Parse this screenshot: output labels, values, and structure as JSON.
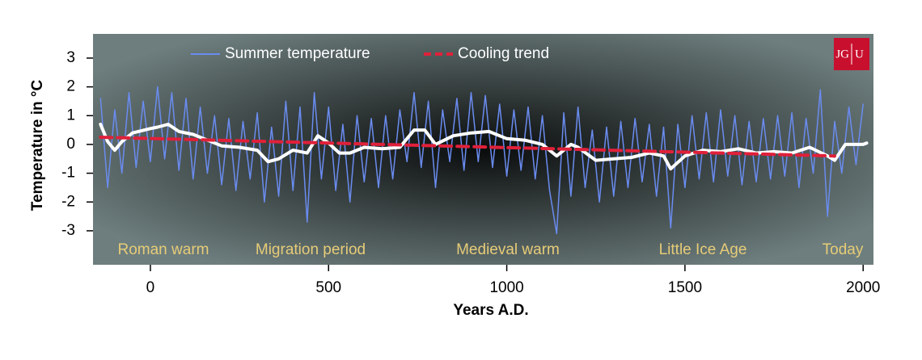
{
  "chart_data": {
    "type": "line",
    "xlabel": "Years A.D.",
    "ylabel": "Temperature in °C",
    "xlim": [
      -161,
      2029
    ],
    "ylim": [
      -4.18,
      3.84
    ],
    "xticks": [
      0,
      500,
      1000,
      1500,
      2000
    ],
    "yticks": [
      -3,
      -2,
      -1,
      0,
      1,
      2,
      3
    ],
    "annotations": [
      "Roman warm",
      "Migration period",
      "Medieval warm",
      "Little Ice Age",
      "Today"
    ],
    "logo": [
      "JG",
      "U"
    ],
    "series": [
      {
        "name": "Summer temperature",
        "color": "#6a8cf0",
        "linestyle": "solid",
        "width": 1.5,
        "x": [
          -140,
          -120,
          -100,
          -80,
          -60,
          -40,
          -20,
          0,
          20,
          40,
          60,
          80,
          100,
          120,
          140,
          160,
          180,
          200,
          220,
          240,
          260,
          280,
          300,
          320,
          340,
          360,
          380,
          400,
          420,
          440,
          460,
          480,
          500,
          520,
          540,
          560,
          580,
          600,
          620,
          640,
          660,
          680,
          700,
          720,
          740,
          760,
          780,
          800,
          820,
          840,
          860,
          880,
          900,
          920,
          940,
          960,
          980,
          1000,
          1020,
          1040,
          1060,
          1080,
          1100,
          1120,
          1140,
          1160,
          1180,
          1200,
          1220,
          1240,
          1260,
          1280,
          1300,
          1320,
          1340,
          1360,
          1380,
          1400,
          1420,
          1440,
          1460,
          1480,
          1500,
          1520,
          1540,
          1560,
          1580,
          1600,
          1620,
          1640,
          1660,
          1680,
          1700,
          1720,
          1740,
          1760,
          1780,
          1800,
          1820,
          1840,
          1860,
          1880,
          1900,
          1920,
          1940,
          1960,
          1980,
          2000
        ],
        "values": [
          1.6,
          -1.5,
          1.2,
          -1.0,
          1.8,
          -0.8,
          1.5,
          -0.6,
          2.0,
          -0.5,
          1.8,
          -0.9,
          1.6,
          -1.2,
          1.3,
          -1.0,
          1.0,
          -1.4,
          0.9,
          -1.6,
          0.8,
          -1.2,
          1.1,
          -2.0,
          0.6,
          -1.8,
          1.5,
          -1.6,
          1.3,
          -2.7,
          1.8,
          -1.2,
          1.3,
          -1.6,
          0.7,
          -2.0,
          1.0,
          -1.3,
          0.9,
          -1.5,
          1.0,
          -1.2,
          1.2,
          -0.6,
          1.8,
          -0.8,
          1.5,
          -1.5,
          1.2,
          -0.6,
          1.6,
          -0.9,
          1.8,
          -0.6,
          1.7,
          -0.8,
          1.4,
          -1.1,
          1.2,
          -0.9,
          1.3,
          -1.2,
          1.0,
          -1.6,
          -3.1,
          1.1,
          -1.8,
          1.3,
          -1.5,
          0.5,
          -2.0,
          0.6,
          -1.8,
          0.8,
          -1.5,
          0.9,
          -1.3,
          0.7,
          -1.8,
          0.6,
          -2.9,
          0.7,
          -1.5,
          1.0,
          -1.2,
          1.1,
          -1.3,
          1.2,
          -1.1,
          1.0,
          -1.4,
          0.8,
          -1.3,
          0.9,
          -1.2,
          1.0,
          -1.1,
          1.1,
          -1.5,
          0.9,
          -1.0,
          1.9,
          -2.5,
          0.8,
          -1.0,
          1.3,
          -0.7,
          1.4
        ]
      },
      {
        "color": "#ffffff",
        "linestyle": "solid",
        "width": 4,
        "x": [
          -140,
          -120,
          -100,
          -80,
          -50,
          0,
          20,
          50,
          80,
          120,
          150,
          200,
          250,
          300,
          330,
          360,
          400,
          440,
          470,
          500,
          530,
          560,
          600,
          650,
          700,
          740,
          770,
          800,
          850,
          900,
          950,
          1000,
          1050,
          1100,
          1140,
          1180,
          1200,
          1250,
          1300,
          1350,
          1400,
          1440,
          1460,
          1500,
          1550,
          1600,
          1650,
          1700,
          1750,
          1800,
          1850,
          1900,
          1920,
          1950,
          2000,
          2010
        ],
        "values": [
          0.7,
          0.1,
          -0.2,
          0.1,
          0.4,
          0.55,
          0.6,
          0.7,
          0.45,
          0.35,
          0.2,
          -0.05,
          -0.1,
          -0.2,
          -0.6,
          -0.5,
          -0.2,
          -0.3,
          0.3,
          0.05,
          -0.3,
          -0.3,
          -0.1,
          -0.15,
          -0.1,
          0.5,
          0.5,
          0,
          0.3,
          0.4,
          0.45,
          0.2,
          0.15,
          0,
          -0.4,
          0,
          -0.1,
          -0.55,
          -0.5,
          -0.45,
          -0.3,
          -0.4,
          -0.85,
          -0.4,
          -0.2,
          -0.25,
          -0.15,
          -0.3,
          -0.25,
          -0.3,
          -0.1,
          -0.4,
          -0.55,
          0,
          0,
          0.05
        ]
      },
      {
        "name": "Cooling trend",
        "color": "#e0203a",
        "linestyle": "dashed",
        "width": 4,
        "x": [
          -140,
          1920
        ],
        "values": [
          0.25,
          -0.4
        ]
      }
    ]
  }
}
